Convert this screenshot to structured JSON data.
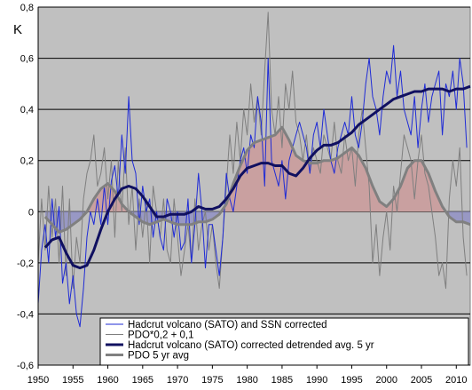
{
  "chart_data": {
    "type": "line",
    "title": "",
    "xlabel": "",
    "ylabel": "K",
    "xlim": [
      1950,
      2012
    ],
    "ylim": [
      -0.6,
      0.8
    ],
    "x_ticks": [
      "1950",
      "1955",
      "1960",
      "1965",
      "1970",
      "1975",
      "1980",
      "1985",
      "1990",
      "1995",
      "2000",
      "2005",
      "2010"
    ],
    "y_ticks": [
      "-0,6",
      "-0,4",
      "-0,2",
      "0",
      "0,2",
      "0,4",
      "0,6",
      "0,8"
    ],
    "grid": "horizontal",
    "background": "#c0c0c0",
    "legend_position": "bottom-right",
    "series": [
      {
        "name": "Hadcrut volcano (SATO) and SSN corrected",
        "style": "thin-line",
        "color": "#1f2bd6",
        "x": [
          1950.0,
          1950.5,
          1951.0,
          1951.5,
          1952.0,
          1952.5,
          1953.0,
          1953.5,
          1954.0,
          1954.5,
          1955.0,
          1955.5,
          1956.0,
          1956.5,
          1957.0,
          1957.5,
          1958.0,
          1958.5,
          1959.0,
          1959.5,
          1960.0,
          1960.5,
          1961.0,
          1961.5,
          1962.0,
          1962.5,
          1963.0,
          1963.5,
          1964.0,
          1964.5,
          1965.0,
          1965.5,
          1966.0,
          1966.5,
          1967.0,
          1967.5,
          1968.0,
          1968.5,
          1969.0,
          1969.5,
          1970.0,
          1970.5,
          1971.0,
          1971.5,
          1972.0,
          1972.5,
          1973.0,
          1973.5,
          1974.0,
          1974.5,
          1975.0,
          1975.5,
          1976.0,
          1976.5,
          1977.0,
          1977.5,
          1978.0,
          1978.5,
          1979.0,
          1979.5,
          1980.0,
          1980.5,
          1981.0,
          1981.5,
          1982.0,
          1982.5,
          1983.0,
          1983.5,
          1984.0,
          1984.5,
          1985.0,
          1985.5,
          1986.0,
          1986.5,
          1987.0,
          1987.5,
          1988.0,
          1988.5,
          1989.0,
          1989.5,
          1990.0,
          1990.5,
          1991.0,
          1991.5,
          1992.0,
          1992.5,
          1993.0,
          1993.5,
          1994.0,
          1994.5,
          1995.0,
          1995.5,
          1996.0,
          1996.5,
          1997.0,
          1997.5,
          1998.0,
          1998.5,
          1999.0,
          1999.5,
          2000.0,
          2000.5,
          2001.0,
          2001.5,
          2002.0,
          2002.5,
          2003.0,
          2003.5,
          2004.0,
          2004.5,
          2005.0,
          2005.5,
          2006.0,
          2006.5,
          2007.0,
          2007.5,
          2008.0,
          2008.5,
          2009.0,
          2009.5,
          2010.0,
          2010.5,
          2011.0,
          2011.5
        ],
        "values": [
          -0.36,
          -0.15,
          -0.05,
          -0.2,
          0.05,
          -0.1,
          0.02,
          -0.28,
          -0.2,
          -0.36,
          -0.25,
          -0.4,
          -0.45,
          -0.3,
          -0.1,
          0.0,
          -0.05,
          0.05,
          -0.05,
          0.1,
          -0.05,
          0.12,
          0.18,
          0.05,
          0.3,
          0.15,
          0.45,
          0.2,
          0.15,
          -0.05,
          0.1,
          0.0,
          0.05,
          -0.1,
          0.0,
          -0.1,
          -0.15,
          0.05,
          0.0,
          -0.1,
          0.0,
          -0.15,
          -0.12,
          0.05,
          -0.2,
          -0.05,
          0.15,
          0.0,
          -0.22,
          -0.05,
          -0.05,
          -0.15,
          -0.25,
          -0.1,
          0.15,
          0.05,
          0.0,
          0.1,
          0.2,
          0.25,
          0.15,
          0.3,
          0.25,
          0.45,
          0.35,
          0.1,
          0.6,
          0.2,
          0.15,
          0.1,
          0.2,
          0.05,
          0.2,
          0.25,
          0.3,
          0.35,
          0.3,
          0.25,
          0.15,
          0.3,
          0.35,
          0.25,
          0.4,
          0.3,
          0.2,
          0.15,
          0.25,
          0.3,
          0.35,
          0.3,
          0.45,
          0.3,
          0.25,
          0.35,
          0.5,
          0.6,
          0.45,
          0.4,
          0.3,
          0.45,
          0.55,
          0.5,
          0.65,
          0.45,
          0.55,
          0.4,
          0.35,
          0.3,
          0.45,
          0.25,
          0.4,
          0.5,
          0.35,
          0.45,
          0.5,
          0.55,
          0.3,
          0.5,
          0.45,
          0.55,
          0.4,
          0.6,
          0.5,
          0.25
        ]
      },
      {
        "name": "PDO*0,2 + 0,1",
        "style": "thin-line",
        "color": "#7f7f7f",
        "x": [
          1950.0,
          1950.5,
          1951.0,
          1951.5,
          1952.0,
          1952.5,
          1953.0,
          1953.5,
          1954.0,
          1954.5,
          1955.0,
          1955.5,
          1956.0,
          1956.5,
          1957.0,
          1957.5,
          1958.0,
          1958.5,
          1959.0,
          1959.5,
          1960.0,
          1960.5,
          1961.0,
          1961.5,
          1962.0,
          1962.5,
          1963.0,
          1963.5,
          1964.0,
          1964.5,
          1965.0,
          1965.5,
          1966.0,
          1966.5,
          1967.0,
          1967.5,
          1968.0,
          1968.5,
          1969.0,
          1969.5,
          1970.0,
          1970.5,
          1971.0,
          1971.5,
          1972.0,
          1972.5,
          1973.0,
          1973.5,
          1974.0,
          1974.5,
          1975.0,
          1975.5,
          1976.0,
          1976.5,
          1977.0,
          1977.5,
          1978.0,
          1978.5,
          1979.0,
          1979.5,
          1980.0,
          1980.5,
          1981.0,
          1981.5,
          1982.0,
          1982.5,
          1983.0,
          1983.5,
          1984.0,
          1984.5,
          1985.0,
          1985.5,
          1986.0,
          1986.5,
          1987.0,
          1987.5,
          1988.0,
          1988.5,
          1989.0,
          1989.5,
          1990.0,
          1990.5,
          1991.0,
          1991.5,
          1992.0,
          1992.5,
          1993.0,
          1993.5,
          1994.0,
          1994.5,
          1995.0,
          1995.5,
          1996.0,
          1996.5,
          1997.0,
          1997.5,
          1998.0,
          1998.5,
          1999.0,
          1999.5,
          2000.0,
          2000.5,
          2001.0,
          2001.5,
          2002.0,
          2002.5,
          2003.0,
          2003.5,
          2004.0,
          2004.5,
          2005.0,
          2005.5,
          2006.0,
          2006.5,
          2007.0,
          2007.5,
          2008.0,
          2008.5,
          2009.0,
          2009.5,
          2010.0,
          2010.5,
          2011.0,
          2011.5
        ],
        "values": [
          -0.2,
          0.05,
          -0.15,
          0.1,
          -0.1,
          0.05,
          -0.2,
          0.1,
          -0.25,
          0.05,
          -0.3,
          -0.1,
          -0.2,
          0.05,
          0.15,
          0.2,
          0.3,
          0.1,
          0.15,
          0.25,
          0.05,
          0.2,
          -0.1,
          0.2,
          0.0,
          0.25,
          -0.05,
          0.1,
          -0.15,
          0.05,
          -0.1,
          0.05,
          -0.2,
          0.1,
          0.0,
          -0.1,
          0.05,
          -0.15,
          -0.2,
          0.05,
          -0.1,
          -0.25,
          -0.15,
          -0.05,
          -0.2,
          0.05,
          -0.15,
          -0.05,
          0.0,
          -0.15,
          -0.05,
          -0.2,
          -0.3,
          -0.1,
          0.1,
          0.3,
          0.15,
          0.35,
          0.2,
          0.4,
          0.3,
          0.5,
          0.35,
          0.45,
          0.3,
          0.55,
          0.78,
          0.4,
          0.3,
          0.45,
          0.25,
          0.5,
          0.4,
          0.55,
          0.35,
          0.3,
          0.2,
          0.3,
          0.15,
          0.25,
          0.2,
          0.15,
          0.3,
          0.25,
          0.2,
          0.35,
          0.2,
          0.15,
          0.3,
          0.2,
          0.25,
          0.1,
          0.3,
          0.4,
          0.25,
          0.1,
          -0.2,
          -0.05,
          -0.25,
          -0.1,
          0.0,
          -0.15,
          0.1,
          0.0,
          0.15,
          0.3,
          0.25,
          0.2,
          0.05,
          0.2,
          0.3,
          0.15,
          0.1,
          0.0,
          -0.1,
          -0.25,
          -0.2,
          -0.3,
          0.05,
          0.2,
          0.1,
          0.25,
          -0.1,
          -0.25
        ]
      },
      {
        "name": "Hadcrut volcano (SATO) corrected detrended avg. 5 yr",
        "style": "thick-line",
        "color": "#101060",
        "x": [
          1951,
          1952,
          1953,
          1954,
          1955,
          1956,
          1957,
          1958,
          1959,
          1960,
          1961,
          1962,
          1963,
          1964,
          1965,
          1966,
          1967,
          1968,
          1969,
          1970,
          1971,
          1972,
          1973,
          1974,
          1975,
          1976,
          1977,
          1978,
          1979,
          1980,
          1981,
          1982,
          1983,
          1984,
          1985,
          1986,
          1987,
          1988,
          1989,
          1990,
          1991,
          1992,
          1993,
          1994,
          1995,
          1996,
          1997,
          1998,
          1999,
          2000,
          2001,
          2002,
          2003,
          2004,
          2005,
          2006,
          2007,
          2008,
          2009,
          2010,
          2011,
          2012
        ],
        "values": [
          -0.14,
          -0.11,
          -0.1,
          -0.16,
          -0.21,
          -0.22,
          -0.21,
          -0.15,
          -0.07,
          0.0,
          0.05,
          0.09,
          0.1,
          0.09,
          0.06,
          0.02,
          -0.02,
          -0.02,
          -0.01,
          -0.01,
          -0.01,
          0.0,
          0.02,
          0.01,
          0.01,
          0.02,
          0.05,
          0.09,
          0.14,
          0.17,
          0.18,
          0.19,
          0.19,
          0.18,
          0.18,
          0.15,
          0.14,
          0.17,
          0.21,
          0.24,
          0.26,
          0.26,
          0.27,
          0.29,
          0.31,
          0.34,
          0.36,
          0.38,
          0.4,
          0.42,
          0.44,
          0.45,
          0.46,
          0.47,
          0.47,
          0.48,
          0.48,
          0.48,
          0.47,
          0.48,
          0.48,
          0.49
        ]
      },
      {
        "name": "PDO 5 yr avg",
        "style": "thick-line-filled",
        "color": "#808080",
        "fill_above": "#c9a0a0",
        "fill_below": "#9898c4",
        "x": [
          1951,
          1952,
          1953,
          1954,
          1955,
          1956,
          1957,
          1958,
          1959,
          1960,
          1961,
          1962,
          1963,
          1964,
          1965,
          1966,
          1967,
          1968,
          1969,
          1970,
          1971,
          1972,
          1973,
          1974,
          1975,
          1976,
          1977,
          1978,
          1979,
          1980,
          1981,
          1982,
          1983,
          1984,
          1985,
          1986,
          1987,
          1988,
          1989,
          1990,
          1991,
          1992,
          1993,
          1994,
          1995,
          1996,
          1997,
          1998,
          1999,
          2000,
          2001,
          2002,
          2003,
          2004,
          2005,
          2006,
          2007,
          2008,
          2009,
          2010,
          2011,
          2012
        ],
        "values": [
          -0.02,
          -0.05,
          -0.08,
          -0.07,
          -0.05,
          -0.03,
          0.0,
          0.05,
          0.09,
          0.11,
          0.08,
          0.03,
          0.0,
          -0.02,
          -0.04,
          -0.05,
          -0.04,
          -0.03,
          -0.04,
          -0.05,
          -0.05,
          -0.05,
          -0.04,
          -0.04,
          -0.03,
          -0.01,
          0.03,
          0.11,
          0.18,
          0.24,
          0.27,
          0.28,
          0.29,
          0.3,
          0.33,
          0.28,
          0.22,
          0.2,
          0.19,
          0.19,
          0.2,
          0.2,
          0.21,
          0.23,
          0.25,
          0.22,
          0.17,
          0.1,
          0.04,
          0.02,
          0.05,
          0.1,
          0.17,
          0.2,
          0.2,
          0.15,
          0.08,
          0.02,
          -0.02,
          -0.04,
          -0.04,
          -0.05
        ]
      }
    ]
  }
}
